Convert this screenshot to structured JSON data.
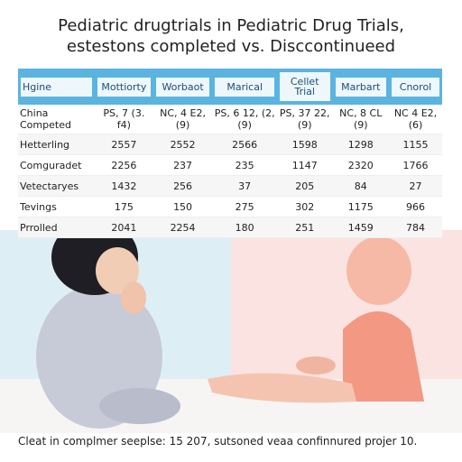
{
  "title": [
    "Pediatric drugtrials in Pediatric Drug Trials,",
    "estestons completed vs. Disccontinueed"
  ],
  "table": {
    "headers": [
      "Hgine",
      "Mottiorty",
      "Worbaot",
      "Marical",
      "Cellet Trial",
      "Marbart",
      "Cnorol"
    ],
    "rows": [
      [
        "China Competed",
        "PS, 7 (3. f4)",
        "NC, 4 E2, (9)",
        "PS, 6 12, (2, (9)",
        "PS, 37 22, (9)",
        "NC, 8 CL (9)",
        "NC 4 E2, (6)"
      ],
      [
        "Hetterling",
        2557,
        2552,
        2566,
        1598,
        1298,
        1155
      ],
      [
        "Comguradet",
        2256,
        237,
        235,
        1147,
        2320,
        1766
      ],
      [
        "Vetectaryes",
        1432,
        256,
        37,
        205,
        84,
        27
      ],
      [
        "Tevings",
        175,
        150,
        275,
        302,
        1175,
        966
      ],
      [
        "Prrolled",
        2041,
        2254,
        180,
        251,
        1459,
        784
      ]
    ]
  },
  "footer": "Cleat in complmer seeplse: 15 207, sutsoned veaa confinnured projer 10."
}
